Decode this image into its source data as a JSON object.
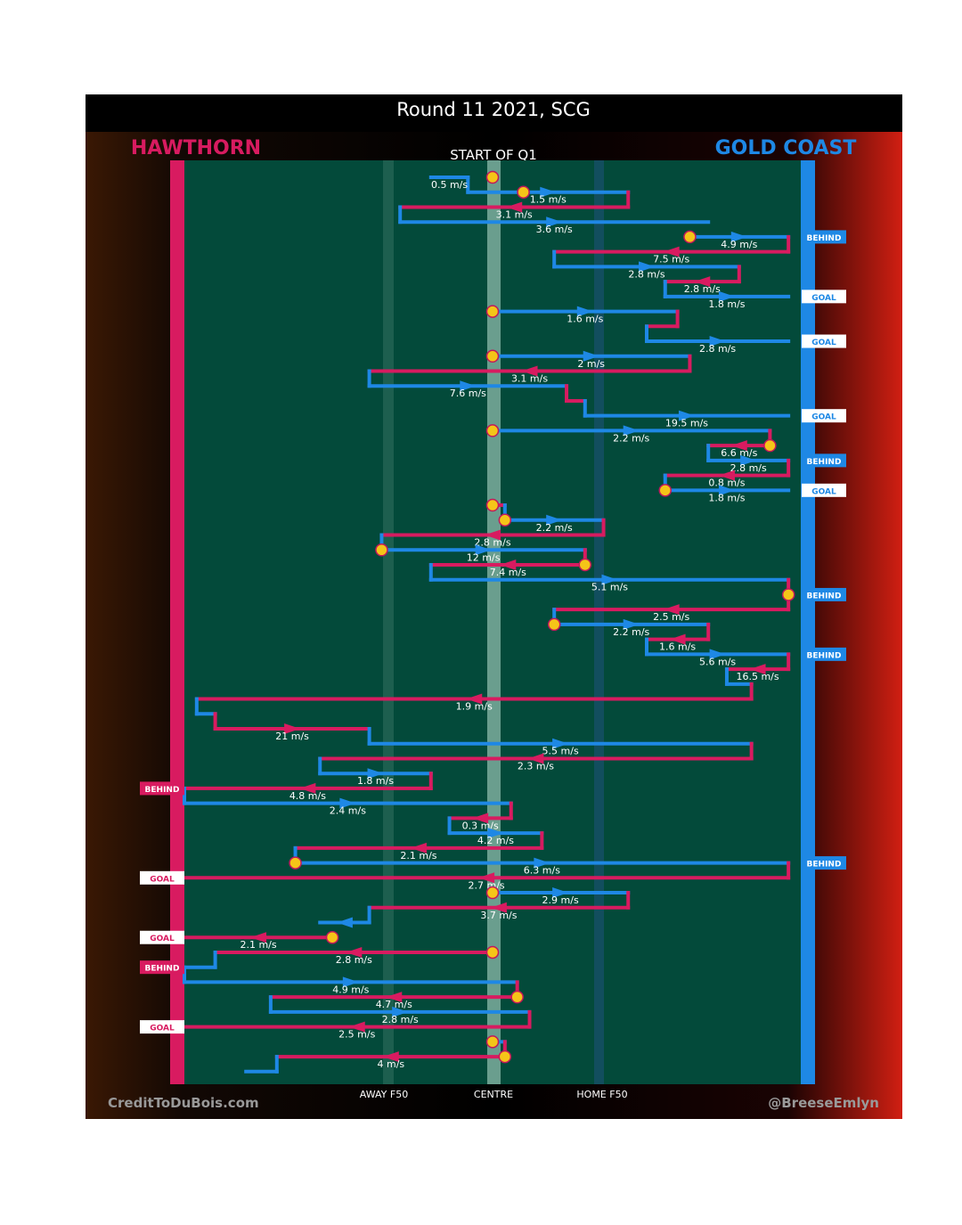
{
  "chart_data": {
    "type": "line",
    "title": "Round 11 2021, SCG",
    "subtitle": "START OF Q1",
    "teams": {
      "left": {
        "name": "HAWTHORN",
        "color": "#d81b60"
      },
      "right": {
        "name": "GOLD COAST",
        "color": "#1e88e5"
      }
    },
    "x_labels": {
      "away_f50": "AWAY F50",
      "centre": "CENTRE",
      "home_f50": "HOME F50"
    },
    "credits": {
      "left": "CreditToDuBois.com",
      "right": "@BreeseEmlyn"
    },
    "colors": {
      "hawthorn": "#d81b60",
      "gold_coast": "#1e88e5",
      "field": "#034a3a",
      "stoppage": "#f5c518"
    },
    "outcome_labels": {
      "goal": "GOAL",
      "behind": "BEHIND"
    },
    "segments": [
      {
        "team": "GC",
        "speed": "0.5 m/s",
        "x1": 0.4,
        "x2": 0.46,
        "row": 1
      },
      {
        "team": "GC",
        "speed": "1.5 m/s",
        "x1": 0.46,
        "x2": 0.72,
        "row": 2
      },
      {
        "team": "HAW",
        "speed": "3.1 m/s",
        "x1": 0.72,
        "x2": 0.35,
        "row": 3
      },
      {
        "team": "GC",
        "speed": "3.6 m/s",
        "x1": 0.35,
        "x2": 0.85,
        "row": 4
      },
      {
        "team": "GC",
        "speed": "4.9 m/s",
        "x1": 0.82,
        "x2": 0.98,
        "row": 5
      },
      {
        "team": "HAW",
        "speed": "7.5 m/s",
        "x1": 0.98,
        "x2": 0.6,
        "row": 6
      },
      {
        "team": "GC",
        "speed": "2.8 m/s",
        "x1": 0.6,
        "x2": 0.9,
        "row": 7
      },
      {
        "team": "HAW",
        "speed": "2.8 m/s",
        "x1": 0.9,
        "x2": 0.78,
        "row": 8
      },
      {
        "team": "GC",
        "speed": "1.8 m/s",
        "x1": 0.78,
        "x2": 0.98,
        "row": 9
      },
      {
        "team": "GC",
        "speed": "1.6 m/s",
        "x1": 0.5,
        "x2": 0.8,
        "row": 10
      },
      {
        "team": "HAW",
        "speed": "",
        "x1": 0.8,
        "x2": 0.75,
        "row": 11
      },
      {
        "team": "GC",
        "speed": "2.8 m/s",
        "x1": 0.75,
        "x2": 0.98,
        "row": 12
      },
      {
        "team": "GC",
        "speed": "2 m/s",
        "x1": 0.5,
        "x2": 0.82,
        "row": 13
      },
      {
        "team": "HAW",
        "speed": "3.1 m/s",
        "x1": 0.82,
        "x2": 0.3,
        "row": 14
      },
      {
        "team": "GC",
        "speed": "7.6 m/s",
        "x1": 0.3,
        "x2": 0.62,
        "row": 15
      },
      {
        "team": "HAW",
        "speed": "",
        "x1": 0.62,
        "x2": 0.65,
        "row": 16
      },
      {
        "team": "GC",
        "speed": "19.5 m/s",
        "x1": 0.65,
        "x2": 0.98,
        "row": 17
      },
      {
        "team": "GC",
        "speed": "2.2 m/s",
        "x1": 0.5,
        "x2": 0.95,
        "row": 18
      },
      {
        "team": "HAW",
        "speed": "6.6 m/s",
        "x1": 0.95,
        "x2": 0.85,
        "row": 19
      },
      {
        "team": "GC",
        "speed": "2.8 m/s",
        "x1": 0.85,
        "x2": 0.98,
        "row": 20
      },
      {
        "team": "HAW",
        "speed": "0.8 m/s",
        "x1": 0.98,
        "x2": 0.78,
        "row": 21
      },
      {
        "team": "GC",
        "speed": "1.8 m/s",
        "x1": 0.78,
        "x2": 0.98,
        "row": 22
      },
      {
        "team": "HAW",
        "speed": "",
        "x1": 0.5,
        "x2": 0.52,
        "row": 23
      },
      {
        "team": "GC",
        "speed": "2.2 m/s",
        "x1": 0.52,
        "x2": 0.68,
        "row": 24
      },
      {
        "team": "HAW",
        "speed": "2.8 m/s",
        "x1": 0.68,
        "x2": 0.32,
        "row": 25
      },
      {
        "team": "GC",
        "speed": "12 m/s",
        "x1": 0.32,
        "x2": 0.65,
        "row": 26
      },
      {
        "team": "HAW",
        "speed": "7.4 m/s",
        "x1": 0.65,
        "x2": 0.4,
        "row": 27
      },
      {
        "team": "GC",
        "speed": "5.1 m/s",
        "x1": 0.4,
        "x2": 0.98,
        "row": 28
      },
      {
        "team": "HAW",
        "speed": "2.5 m/s",
        "x1": 0.98,
        "x2": 0.6,
        "row": 30
      },
      {
        "team": "GC",
        "speed": "2.2 m/s",
        "x1": 0.6,
        "x2": 0.85,
        "row": 31
      },
      {
        "team": "HAW",
        "speed": "1.6 m/s",
        "x1": 0.85,
        "x2": 0.75,
        "row": 32
      },
      {
        "team": "GC",
        "speed": "5.6 m/s",
        "x1": 0.75,
        "x2": 0.98,
        "row": 33
      },
      {
        "team": "HAW",
        "speed": "16.5 m/s",
        "x1": 0.98,
        "x2": 0.88,
        "row": 34
      },
      {
        "team": "GC",
        "speed": "",
        "x1": 0.88,
        "x2": 0.92,
        "row": 35
      },
      {
        "team": "HAW",
        "speed": "1.9 m/s",
        "x1": 0.92,
        "x2": 0.02,
        "row": 36
      },
      {
        "team": "GC",
        "speed": "",
        "x1": 0.02,
        "x2": 0.05,
        "row": 37
      },
      {
        "team": "HAW",
        "speed": "21 m/s",
        "x1": 0.05,
        "x2": 0.3,
        "row": 38
      },
      {
        "team": "GC",
        "speed": "5.5 m/s",
        "x1": 0.3,
        "x2": 0.92,
        "row": 39
      },
      {
        "team": "HAW",
        "speed": "2.3 m/s",
        "x1": 0.92,
        "x2": 0.22,
        "row": 40
      },
      {
        "team": "GC",
        "speed": "1.8 m/s",
        "x1": 0.22,
        "x2": 0.4,
        "row": 41
      },
      {
        "team": "HAW",
        "speed": "4.8 m/s",
        "x1": 0.4,
        "x2": 0.0,
        "row": 42
      },
      {
        "team": "GC",
        "speed": "2.4 m/s",
        "x1": 0.0,
        "x2": 0.53,
        "row": 43
      },
      {
        "team": "HAW",
        "speed": "0.3 m/s",
        "x1": 0.53,
        "x2": 0.43,
        "row": 44
      },
      {
        "team": "GC",
        "speed": "4.2 m/s",
        "x1": 0.43,
        "x2": 0.58,
        "row": 45
      },
      {
        "team": "HAW",
        "speed": "2.1 m/s",
        "x1": 0.58,
        "x2": 0.18,
        "row": 46
      },
      {
        "team": "GC",
        "speed": "6.3 m/s",
        "x1": 0.18,
        "x2": 0.98,
        "row": 47
      },
      {
        "team": "HAW",
        "speed": "2.7 m/s",
        "x1": 0.98,
        "x2": 0.0,
        "row": 48
      },
      {
        "team": "GC",
        "speed": "2.9 m/s",
        "x1": 0.5,
        "x2": 0.72,
        "row": 49
      },
      {
        "team": "HAW",
        "speed": "3.7 m/s",
        "x1": 0.72,
        "x2": 0.3,
        "row": 50
      },
      {
        "team": "GC",
        "speed": "",
        "x1": 0.3,
        "x2": 0.22,
        "row": 51
      },
      {
        "team": "HAW",
        "speed": "2.1 m/s",
        "x1": 0.24,
        "x2": 0.0,
        "row": 52
      },
      {
        "team": "HAW",
        "speed": "2.8 m/s",
        "x1": 0.5,
        "x2": 0.05,
        "row": 53
      },
      {
        "team": "GC",
        "speed": "",
        "x1": 0.05,
        "x2": 0.0,
        "row": 54
      },
      {
        "team": "GC",
        "speed": "4.9 m/s",
        "x1": 0.0,
        "x2": 0.54,
        "row": 55
      },
      {
        "team": "HAW",
        "speed": "4.7 m/s",
        "x1": 0.54,
        "x2": 0.14,
        "row": 56
      },
      {
        "team": "GC",
        "speed": "2.8 m/s",
        "x1": 0.14,
        "x2": 0.56,
        "row": 57
      },
      {
        "team": "HAW",
        "speed": "2.5 m/s",
        "x1": 0.56,
        "x2": 0.0,
        "row": 58
      },
      {
        "team": "GC",
        "speed": "",
        "x1": 0.5,
        "x2": 0.52,
        "row": 59
      },
      {
        "team": "HAW",
        "speed": "4 m/s",
        "x1": 0.52,
        "x2": 0.15,
        "row": 60
      },
      {
        "team": "GC",
        "speed": "",
        "x1": 0.15,
        "x2": 0.1,
        "row": 61
      }
    ],
    "stoppages": [
      {
        "x": 0.5,
        "row": 1
      },
      {
        "x": 0.55,
        "row": 2
      },
      {
        "x": 0.82,
        "row": 5
      },
      {
        "x": 0.5,
        "row": 10
      },
      {
        "x": 0.5,
        "row": 13
      },
      {
        "x": 0.5,
        "row": 18
      },
      {
        "x": 0.95,
        "row": 19
      },
      {
        "x": 0.78,
        "row": 22
      },
      {
        "x": 0.5,
        "row": 23
      },
      {
        "x": 0.52,
        "row": 24
      },
      {
        "x": 0.32,
        "row": 26
      },
      {
        "x": 0.65,
        "row": 27
      },
      {
        "x": 0.98,
        "row": 29
      },
      {
        "x": 0.6,
        "row": 31
      },
      {
        "x": 0.18,
        "row": 47
      },
      {
        "x": 0.5,
        "row": 49
      },
      {
        "x": 0.24,
        "row": 52
      },
      {
        "x": 0.5,
        "row": 53
      },
      {
        "x": 0.54,
        "row": 56
      },
      {
        "x": 0.5,
        "row": 59
      },
      {
        "x": 0.52,
        "row": 60
      }
    ],
    "outcomes": [
      {
        "side": "right",
        "type": "behind",
        "row": 5
      },
      {
        "side": "right",
        "type": "goal",
        "row": 9
      },
      {
        "side": "right",
        "type": "goal",
        "row": 12
      },
      {
        "side": "right",
        "type": "goal",
        "row": 17
      },
      {
        "side": "right",
        "type": "behind",
        "row": 20
      },
      {
        "side": "right",
        "type": "goal",
        "row": 22
      },
      {
        "side": "right",
        "type": "behind",
        "row": 29
      },
      {
        "side": "right",
        "type": "behind",
        "row": 33
      },
      {
        "side": "left",
        "type": "behind",
        "row": 42
      },
      {
        "side": "right",
        "type": "behind",
        "row": 47
      },
      {
        "side": "left",
        "type": "goal",
        "row": 48
      },
      {
        "side": "left",
        "type": "goal",
        "row": 52
      },
      {
        "side": "left",
        "type": "behind",
        "row": 54
      },
      {
        "side": "left",
        "type": "goal",
        "row": 58
      }
    ]
  }
}
